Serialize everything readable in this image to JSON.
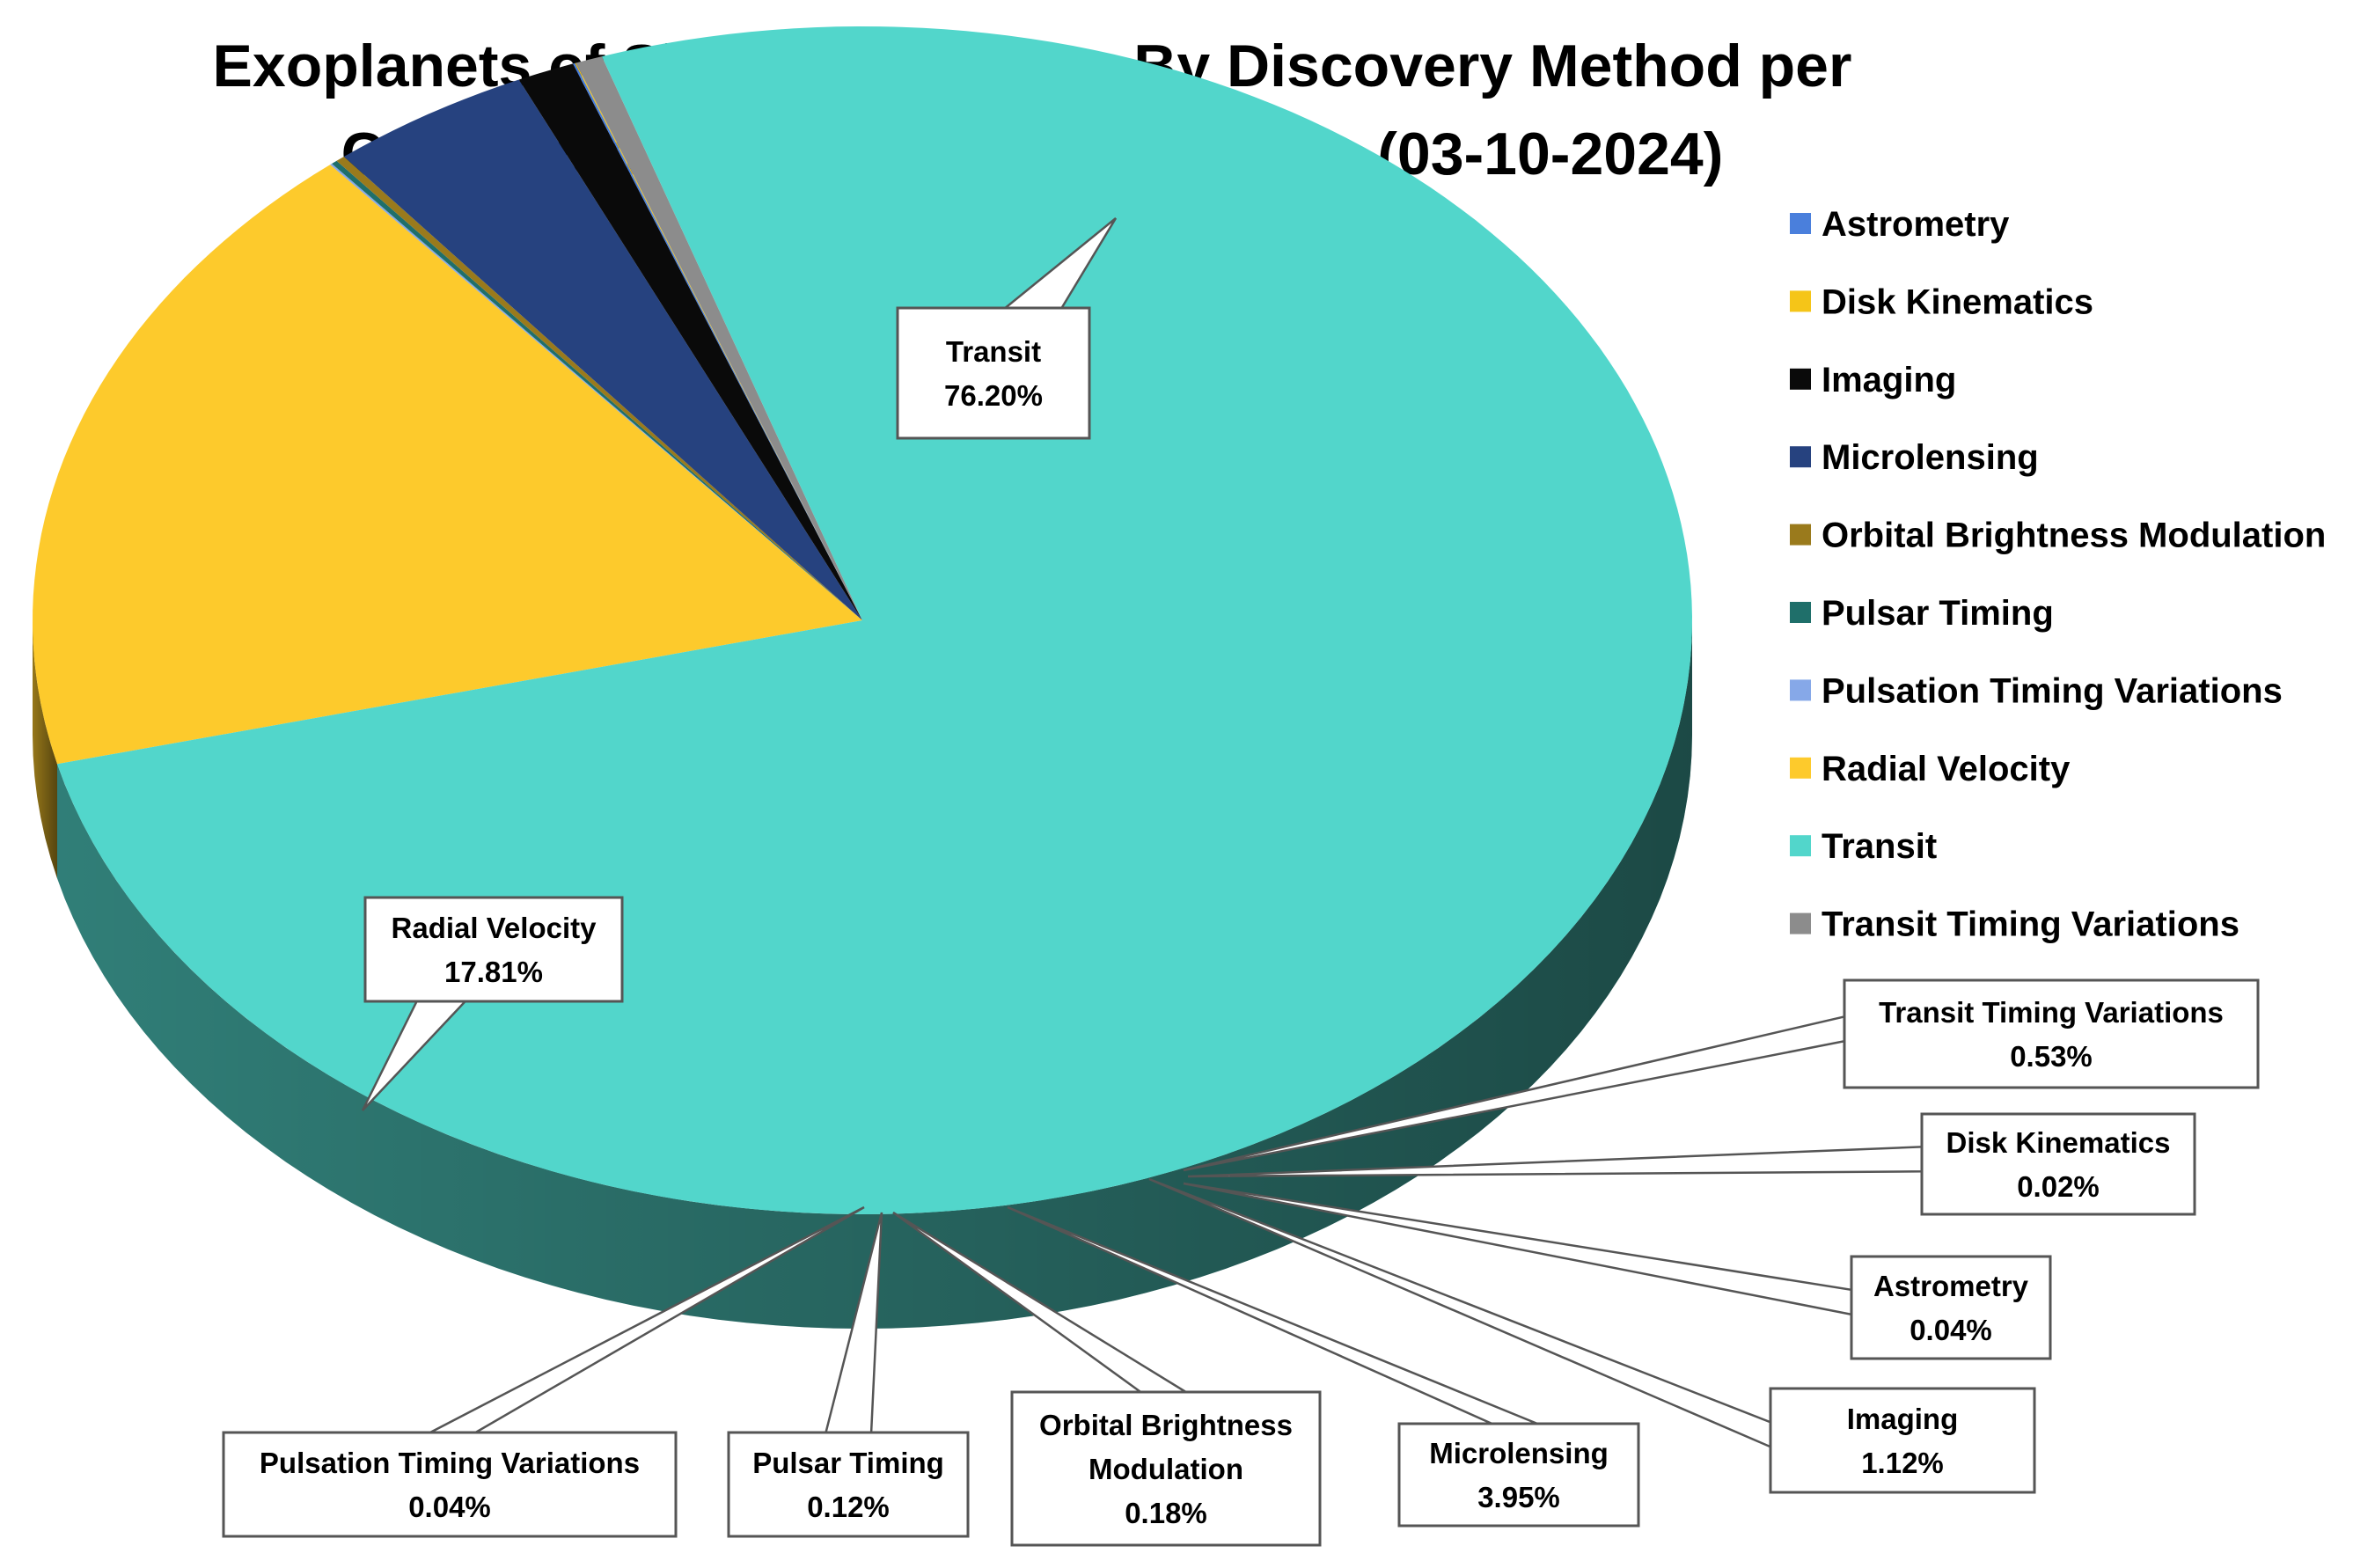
{
  "chart_data": {
    "type": "pie",
    "title": "Exoplanets of Single Host Stars By Discovery Method per Confirmed NASA Exoplanet Archive (03-10-2024)",
    "title_lines": [
      "Exoplanets of Single Host Stars By Discovery Method per",
      "Confirmed NASA Exoplanet Archive (03-10-2024)"
    ],
    "three_d": true,
    "legend_position": "right",
    "slices": [
      {
        "name": "Astrometry",
        "value": 0.04,
        "label": "0.04%",
        "color": "#4a7fdc"
      },
      {
        "name": "Disk Kinematics",
        "value": 0.02,
        "label": "0.02%",
        "color": "#f5c518"
      },
      {
        "name": "Imaging",
        "value": 1.12,
        "label": "1.12%",
        "color": "#0a0a0a"
      },
      {
        "name": "Microlensing",
        "value": 3.95,
        "label": "3.95%",
        "color": "#26427f"
      },
      {
        "name": "Orbital Brightness Modulation",
        "value": 0.18,
        "label": "0.18%",
        "color": "#9a7a1c"
      },
      {
        "name": "Pulsar Timing",
        "value": 0.12,
        "label": "0.12%",
        "color": "#1f6f6a"
      },
      {
        "name": "Pulsation Timing Variations",
        "value": 0.04,
        "label": "0.04%",
        "color": "#86a8e8"
      },
      {
        "name": "Radial Velocity",
        "value": 17.81,
        "label": "17.81%",
        "color": "#fdca2c"
      },
      {
        "name": "Transit",
        "value": 76.2,
        "label": "76.20%",
        "color": "#52d6cb"
      },
      {
        "name": "Transit Timing Variations",
        "value": 0.53,
        "label": "0.53%",
        "color": "#8c8c8c"
      }
    ]
  }
}
